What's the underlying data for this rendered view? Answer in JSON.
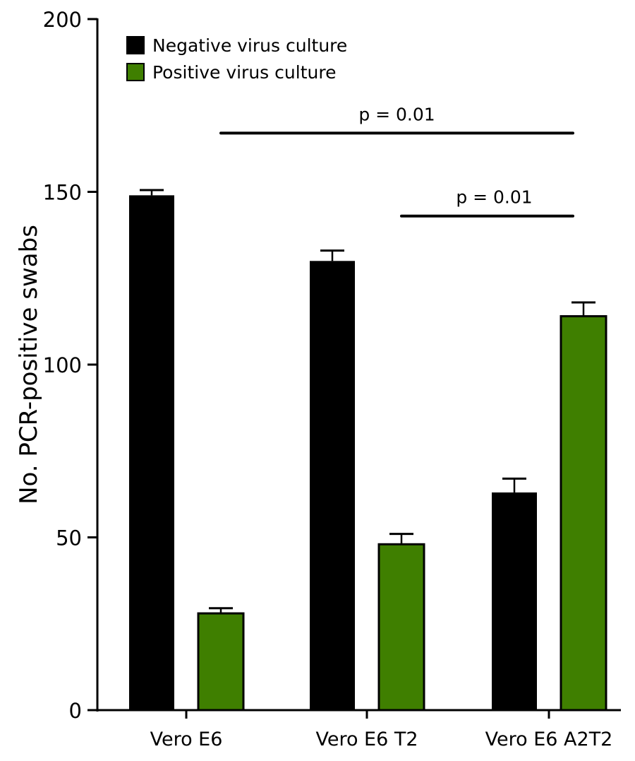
{
  "chart_data": {
    "type": "bar",
    "title": "",
    "xlabel": "",
    "ylabel": "No. PCR-positive swabs",
    "ylim": [
      0,
      200
    ],
    "yticks": [
      0,
      50,
      100,
      150,
      200
    ],
    "grid": false,
    "legend_position": "top-left",
    "categories": [
      "Vero E6",
      "Vero E6 T2",
      "Vero E6 A2T2"
    ],
    "series": [
      {
        "name": "Negative virus culture",
        "color": "#000000",
        "values": [
          149,
          130,
          63
        ],
        "errors": [
          1.5,
          3,
          4
        ]
      },
      {
        "name": "Positive virus culture",
        "color": "#3f7f00",
        "values": [
          28,
          48,
          114
        ],
        "errors": [
          1.5,
          3,
          4
        ]
      }
    ],
    "annotations": [
      {
        "text": "p = 0.01",
        "from": {
          "category": "Vero E6",
          "series": "Positive virus culture"
        },
        "to": {
          "category": "Vero E6 A2T2",
          "series": "Positive virus culture"
        },
        "y": 167
      },
      {
        "text": "p = 0.01",
        "from": {
          "category": "Vero E6 T2",
          "series": "Positive virus culture"
        },
        "to": {
          "category": "Vero E6 A2T2",
          "series": "Positive virus culture"
        },
        "y": 143
      }
    ]
  }
}
